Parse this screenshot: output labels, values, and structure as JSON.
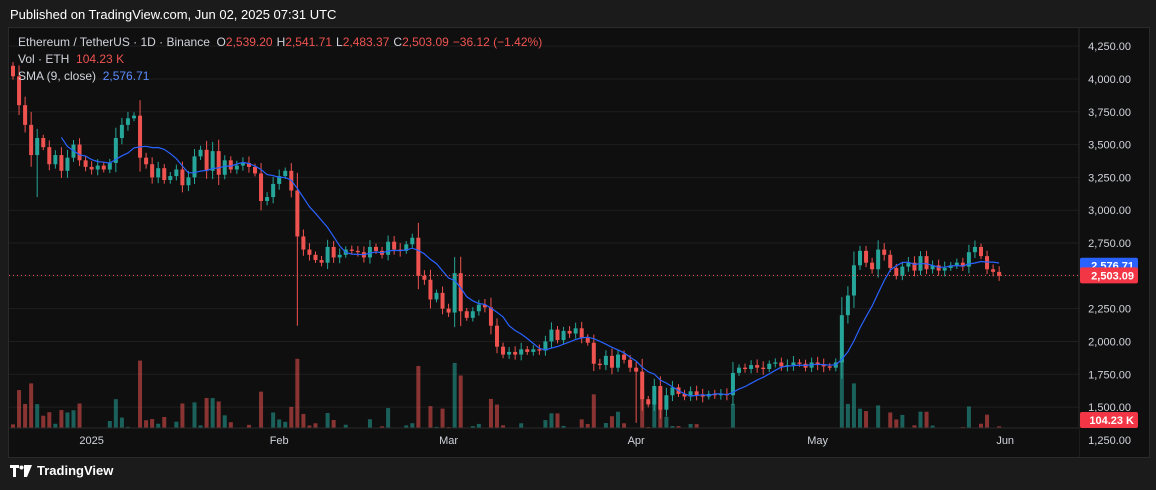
{
  "header": {
    "published": "Published on TradingView.com, Jun 02, 2025 07:31 UTC"
  },
  "legend": {
    "symbol": "Ethereum / TetherUS · 1D · Binance",
    "o_label": "O",
    "o_value": "2,539.20",
    "h_label": "H",
    "h_value": "2,541.71",
    "l_label": "L",
    "l_value": "2,483.37",
    "c_label": "C",
    "c_value": "2,503.09",
    "change": "−36.12 (−1.42%)",
    "vol_label": "Vol · ETH",
    "vol_value": "104.23 K",
    "sma_label": "SMA (9, close)",
    "sma_value": "2,576.71"
  },
  "footer": {
    "brand": "TradingView"
  },
  "colors": {
    "up": "#26a69a",
    "down": "#ef5350",
    "sma": "#2962ff",
    "background": "#0f0f0f",
    "grid": "#1f1f1f",
    "text": "#d1d4dc"
  },
  "chart_data": {
    "type": "candlestick",
    "title": "Ethereum / TetherUS · 1D · Binance",
    "ylim": [
      1150,
      4350
    ],
    "y_ticks": [
      1250,
      1500,
      1750,
      2000,
      2250,
      2500,
      2750,
      3000,
      3250,
      3500,
      3750,
      4000,
      4250
    ],
    "y_tick_labels": [
      "1,250.00",
      "1,500.00",
      "1,750.00",
      "2,000.00",
      "2,250.00",
      "2,500.00",
      "2,750.00",
      "3,000.00",
      "3,250.00",
      "3,500.00",
      "3,750.00",
      "4,000.00",
      "4,250.00"
    ],
    "x_labels": [
      {
        "label": "2025",
        "day": 13
      },
      {
        "label": "Feb",
        "day": 44
      },
      {
        "label": "Mar",
        "day": 72
      },
      {
        "label": "Apr",
        "day": 103
      },
      {
        "label": "May",
        "day": 133
      },
      {
        "label": "Jun",
        "day": 164
      }
    ],
    "price_badges": [
      {
        "label": "2,576.71",
        "value": 2576.71,
        "color": "#2962ff"
      },
      {
        "label": "2,503.09",
        "value": 2503.09,
        "color": "#f23645"
      }
    ],
    "volume_badge": {
      "label": "104.23 K",
      "color": "#f23645"
    },
    "current_price": 2503.09,
    "sma_period": 9,
    "closes": [
      4020,
      3800,
      3650,
      3420,
      3550,
      3480,
      3350,
      3420,
      3300,
      3400,
      3500,
      3380,
      3330,
      3310,
      3340,
      3310,
      3360,
      3550,
      3650,
      3700,
      3720,
      3400,
      3350,
      3250,
      3320,
      3230,
      3260,
      3310,
      3190,
      3250,
      3410,
      3460,
      3300,
      3450,
      3270,
      3380,
      3310,
      3340,
      3360,
      3330,
      3280,
      3070,
      3100,
      3200,
      3260,
      3300,
      3150,
      2800,
      2700,
      2660,
      2620,
      2600,
      2720,
      2640,
      2660,
      2700,
      2690,
      2680,
      2640,
      2720,
      2690,
      2660,
      2760,
      2700,
      2690,
      2740,
      2790,
      2500,
      2470,
      2320,
      2370,
      2250,
      2220,
      2520,
      2230,
      2180,
      2230,
      2280,
      2260,
      2120,
      1960,
      1900,
      1920,
      1900,
      1940,
      1920,
      1940,
      1930,
      2000,
      2090,
      2010,
      2080,
      2060,
      2100,
      2030,
      1990,
      1830,
      1820,
      1890,
      1800,
      1900,
      1860,
      1800,
      1770,
      1560,
      1520,
      1660,
      1480,
      1590,
      1650,
      1600,
      1580,
      1620,
      1590,
      1580,
      1600,
      1590,
      1600,
      1590,
      1760,
      1800,
      1790,
      1820,
      1800,
      1790,
      1830,
      1840,
      1810,
      1820,
      1840,
      1830,
      1800,
      1840,
      1820,
      1810,
      1800,
      1840,
      2200,
      2350,
      2580,
      2690,
      2600,
      2550,
      2700,
      2660,
      2560,
      2500,
      2570,
      2600,
      2540,
      2650,
      2550,
      2580,
      2540,
      2560,
      2580,
      2600,
      2570,
      2680,
      2720,
      2650,
      2550,
      2530,
      2500
    ]
  }
}
